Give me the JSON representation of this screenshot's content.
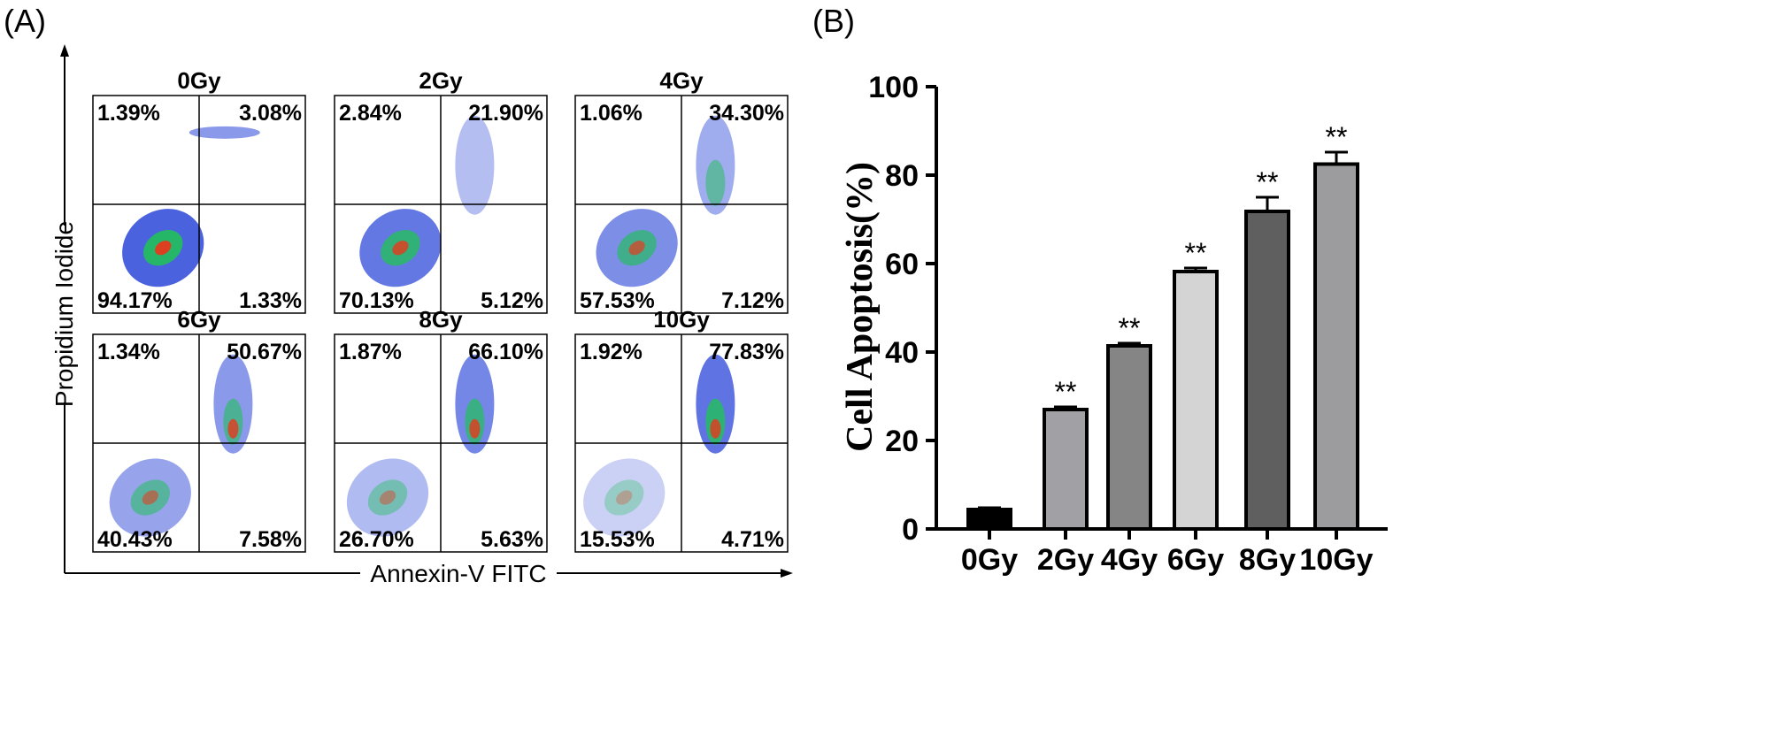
{
  "panel_a": {
    "label": "(A)",
    "x_axis_label": "Annexin-V FITC",
    "y_axis_label": "Propidium Iodide",
    "plots": [
      {
        "title": "0Gy",
        "ul": "1.39%",
        "ur": "3.08%",
        "ll": "94.17%",
        "lr": "1.33%"
      },
      {
        "title": "2Gy",
        "ul": "2.84%",
        "ur": "21.90%",
        "ll": "70.13%",
        "lr": "5.12%"
      },
      {
        "title": "4Gy",
        "ul": "1.06%",
        "ur": "34.30%",
        "ll": "57.53%",
        "lr": "7.12%"
      },
      {
        "title": "6Gy",
        "ul": "1.34%",
        "ur": "50.67%",
        "ll": "40.43%",
        "lr": "7.58%"
      },
      {
        "title": "8Gy",
        "ul": "1.87%",
        "ur": "66.10%",
        "ll": "26.70%",
        "lr": "5.63%"
      },
      {
        "title": "10Gy",
        "ul": "1.92%",
        "ur": "77.83%",
        "ll": "15.53%",
        "lr": "4.71%"
      }
    ]
  },
  "panel_b": {
    "label": "(B)"
  },
  "chart_data": {
    "type": "bar",
    "title": "",
    "xlabel": "",
    "ylabel": "Cell Apoptosis(%)",
    "ylim": [
      0,
      100
    ],
    "yticks": [
      0,
      20,
      40,
      60,
      80,
      100
    ],
    "categories": [
      "0Gy",
      "2Gy",
      "4Gy",
      "6Gy",
      "8Gy",
      "10Gy"
    ],
    "values": [
      4.4,
      27.0,
      41.4,
      58.2,
      71.8,
      82.5
    ],
    "errors": [
      0.4,
      0.6,
      0.6,
      0.8,
      3.2,
      2.7
    ],
    "significance": [
      "",
      "**",
      "**",
      "**",
      "**",
      "**"
    ],
    "bar_colors": [
      "#000000",
      "#a0a0a5",
      "#858585",
      "#d4d4d4",
      "#5f5f5f",
      "#9c9c9e"
    ]
  }
}
